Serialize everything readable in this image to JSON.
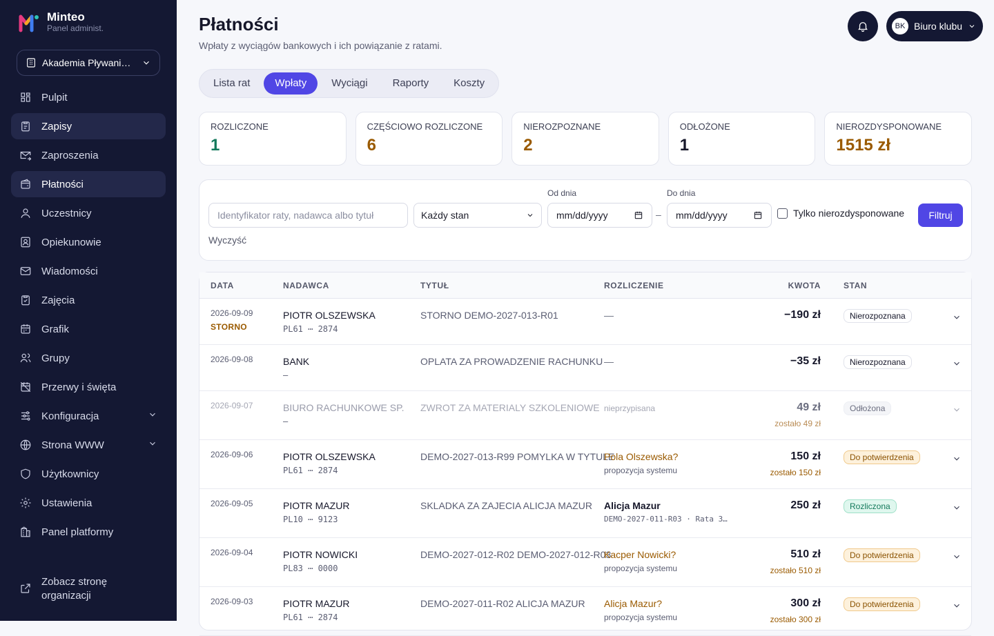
{
  "brand": {
    "name": "Minteo",
    "subtitle": "Panel administ."
  },
  "org_select": {
    "label": "Akademia Pływani…"
  },
  "nav": {
    "items": [
      {
        "label": "Pulpit",
        "icon": "grid-icon",
        "active": false,
        "expandable": false
      },
      {
        "label": "Zapisy",
        "icon": "clipboard-icon",
        "active": true,
        "expandable": false
      },
      {
        "label": "Zaproszenia",
        "icon": "mail-send-icon",
        "active": false,
        "expandable": false
      },
      {
        "label": "Płatności",
        "icon": "wallet-icon",
        "active": true,
        "expandable": false
      },
      {
        "label": "Uczestnicy",
        "icon": "user-icon",
        "active": false,
        "expandable": false
      },
      {
        "label": "Opiekunowie",
        "icon": "guardian-icon",
        "active": false,
        "expandable": false
      },
      {
        "label": "Wiadomości",
        "icon": "mail-icon",
        "active": false,
        "expandable": false
      },
      {
        "label": "Zajęcia",
        "icon": "clipboard-check-icon",
        "active": false,
        "expandable": false
      },
      {
        "label": "Grafik",
        "icon": "calendar-icon",
        "active": false,
        "expandable": false
      },
      {
        "label": "Grupy",
        "icon": "users-icon",
        "active": false,
        "expandable": false
      },
      {
        "label": "Przerwy i święta",
        "icon": "calendar-off-icon",
        "active": false,
        "expandable": false
      },
      {
        "label": "Konfiguracja",
        "icon": "sliders-icon",
        "active": false,
        "expandable": true
      },
      {
        "label": "Strona WWW",
        "icon": "globe-icon",
        "active": false,
        "expandable": true
      },
      {
        "label": "Użytkownicy",
        "icon": "shield-icon",
        "active": false,
        "expandable": false
      },
      {
        "label": "Ustawienia",
        "icon": "gear-icon",
        "active": false,
        "expandable": false
      },
      {
        "label": "Panel platformy",
        "icon": "building-icon",
        "active": false,
        "expandable": false
      }
    ],
    "site_link": "Zobacz stronę organizacji"
  },
  "header": {
    "title": "Płatności",
    "subtitle": "Wpłaty z wyciągów bankowych i ich powiązanie z ratami.",
    "user": {
      "initials": "BK",
      "name": "Biuro klubu"
    }
  },
  "tabs": [
    {
      "label": "Lista rat",
      "active": false
    },
    {
      "label": "Wpłaty",
      "active": true
    },
    {
      "label": "Wyciągi",
      "active": false
    },
    {
      "label": "Raporty",
      "active": false
    },
    {
      "label": "Koszty",
      "active": false
    }
  ],
  "stats": [
    {
      "label": "Rozliczone",
      "value": "1",
      "color": "#13795b"
    },
    {
      "label": "Częściowo rozliczone",
      "value": "6",
      "color": "#9a5a00"
    },
    {
      "label": "Nierozpoznane",
      "value": "2",
      "color": "#9a5a00"
    },
    {
      "label": "Odłożone",
      "value": "1",
      "color": "#16172a"
    },
    {
      "label": "Nierozdysponowane",
      "value": "1515 zł",
      "color": "#9a5a00"
    }
  ],
  "filters": {
    "search_placeholder": "Identyfikator raty, nadawca albo tytuł",
    "status_select": "Każdy stan",
    "from_label": "Od dnia",
    "to_label": "Do dnia",
    "date_placeholder": "mm/dd/yyyy",
    "dash": "–",
    "only_unassigned": "Tylko nierozdysponowane",
    "submit": "Filtruj",
    "clear": "Wyczyść"
  },
  "table": {
    "columns": {
      "date": "DATA",
      "sender": "NADAWCA",
      "title": "TYTUŁ",
      "settlement": "ROZLICZENIE",
      "amount": "KWOTA",
      "status": "STAN"
    },
    "rows": [
      {
        "date": "2026-09-09",
        "storno": "STORNO",
        "sender": "PIOTR OLSZEWSKA",
        "account": "PL61 ⋯ 2874",
        "title": "STORNO DEMO-2027-013-R01",
        "settlement": "—",
        "settlement_kind": "none",
        "settlement_sub": "",
        "amount": "−190 zł",
        "remaining": "",
        "status": "Nierozpoznana",
        "status_kind": "plain",
        "dim": false
      },
      {
        "date": "2026-09-08",
        "storno": "",
        "sender": "BANK",
        "account": "—",
        "title": "OPLATA ZA PROWADZENIE RACHUNKU",
        "settlement": "—",
        "settlement_kind": "none",
        "settlement_sub": "",
        "amount": "−35 zł",
        "remaining": "",
        "status": "Nierozpoznana",
        "status_kind": "plain",
        "dim": false
      },
      {
        "date": "2026-09-07",
        "storno": "",
        "sender": "BIURO RACHUNKOWE SP.",
        "account": "—",
        "title": "ZWROT ZA MATERIALY SZKOLENIOWE",
        "settlement": "nieprzypisana",
        "settlement_kind": "unassigned",
        "settlement_sub": "",
        "amount": "49 zł",
        "remaining": "zostało 49 zł",
        "status": "Odłożona",
        "status_kind": "muted",
        "dim": true
      },
      {
        "date": "2026-09-06",
        "storno": "",
        "sender": "PIOTR OLSZEWSKA",
        "account": "PL61 ⋯ 2874",
        "title": "DEMO-2027-013-R99 POMYLKA W TYTULE",
        "settlement": "Pola Olszewska?",
        "settlement_kind": "proposal",
        "settlement_sub": "propozycja systemu",
        "amount": "150 zł",
        "remaining": "zostało 150 zł",
        "status": "Do potwierdzenia",
        "status_kind": "warn",
        "dim": false
      },
      {
        "date": "2026-09-05",
        "storno": "",
        "sender": "PIOTR MAZUR",
        "account": "PL10 ⋯ 9123",
        "title": "SKLADKA ZA ZAJECIA ALICJA MAZUR",
        "settlement": "Alicja Mazur",
        "settlement_kind": "person",
        "settlement_sub": "DEMO-2027-011-R03 · Rata 3…",
        "amount": "250 zł",
        "remaining": "",
        "status": "Rozliczona",
        "status_kind": "ok",
        "dim": false
      },
      {
        "date": "2026-09-04",
        "storno": "",
        "sender": "PIOTR NOWICKI",
        "account": "PL83 ⋯ 0000",
        "title": "DEMO-2027-012-R02 DEMO-2027-012-R03",
        "settlement": "Kacper Nowicki?",
        "settlement_kind": "proposal",
        "settlement_sub": "propozycja systemu",
        "amount": "510 zł",
        "remaining": "zostało 510 zł",
        "status": "Do potwierdzenia",
        "status_kind": "warn",
        "dim": false
      },
      {
        "date": "2026-09-03",
        "storno": "",
        "sender": "PIOTR MAZUR",
        "account": "PL61 ⋯ 2874",
        "title": "DEMO-2027-011-R02 ALICJA MAZUR",
        "settlement": "Alicja Mazur?",
        "settlement_kind": "proposal",
        "settlement_sub": "propozycja systemu",
        "amount": "300 zł",
        "remaining": "zostało 300 zł",
        "status": "Do potwierdzenia",
        "status_kind": "warn",
        "dim": false
      }
    ]
  }
}
